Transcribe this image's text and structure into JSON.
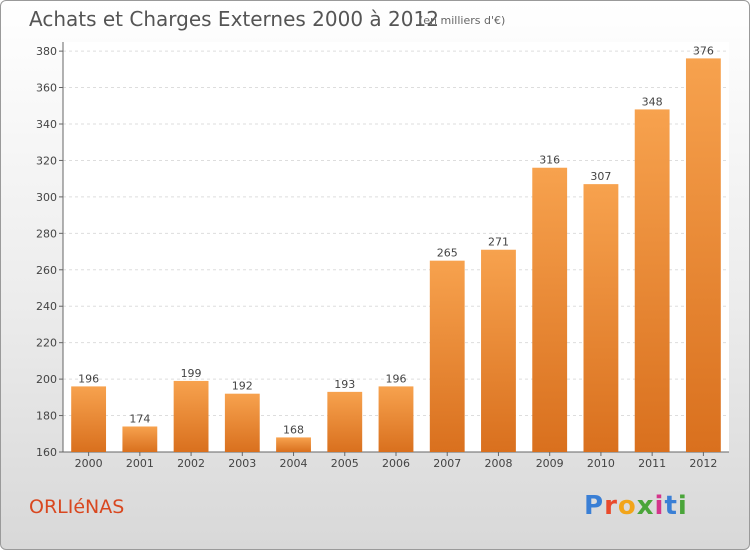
{
  "header": {
    "title": "Achats et Charges Externes 2000 à 2012",
    "subtitle": "(en milliers d'€)"
  },
  "footer": {
    "location": "ORLIéNAS",
    "brand": {
      "letters": [
        "P",
        "r",
        "o",
        "x",
        "i",
        "t",
        "i"
      ],
      "colors": [
        "#3a7fd5",
        "#e94a2c",
        "#f2a51a",
        "#4aa53a",
        "#d4358b",
        "#3a7fd5",
        "#4aa53a"
      ]
    }
  },
  "chart_data": {
    "type": "bar",
    "title": "Achats et Charges Externes 2000 à 2012",
    "subtitle": "(en milliers d'€)",
    "xlabel": "",
    "ylabel": "",
    "categories": [
      "2000",
      "2001",
      "2002",
      "2003",
      "2004",
      "2005",
      "2006",
      "2007",
      "2008",
      "2009",
      "2010",
      "2011",
      "2012"
    ],
    "values": [
      196,
      174,
      199,
      192,
      168,
      193,
      196,
      265,
      271,
      316,
      307,
      348,
      376
    ],
    "ylim": [
      160,
      385
    ],
    "yticks": [
      160,
      180,
      200,
      220,
      240,
      260,
      280,
      300,
      320,
      340,
      360,
      380
    ],
    "grid": true,
    "bar_color_top": "#f7a24e",
    "bar_color_bottom": "#d9701e"
  }
}
